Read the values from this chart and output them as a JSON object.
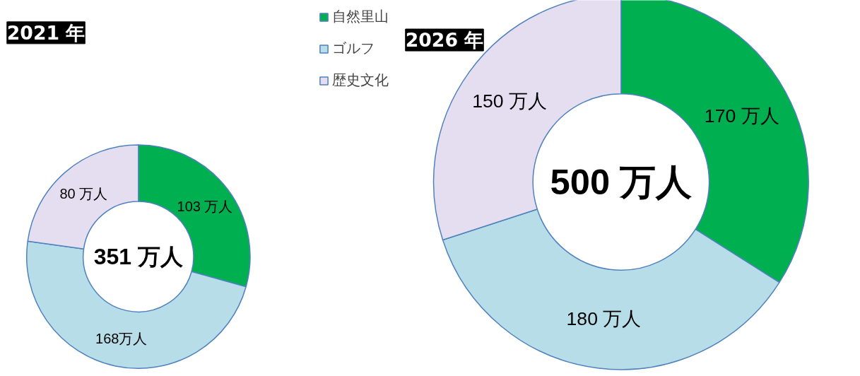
{
  "chart_data": [
    {
      "type": "donut",
      "title": "2021 年",
      "categories": [
        "自然里山",
        "ゴルフ",
        "歴史文化"
      ],
      "values": [
        103,
        168,
        80
      ],
      "colors": [
        "#00b050",
        "#b7dde8",
        "#e4def0"
      ],
      "value_labels": [
        "103 万人",
        "168万人",
        "80 万人"
      ],
      "annotations": [
        "351 万人"
      ],
      "legend": "top right"
    },
    {
      "type": "donut",
      "title": "2026 年",
      "categories": [
        null,
        null,
        null
      ],
      "values": [
        170,
        180,
        150
      ],
      "colors": [
        "#00b050",
        "#b7dde8",
        "#e4def0"
      ],
      "value_labels": [
        "170 万人",
        "180 万人",
        "150 万人"
      ],
      "annotations": [
        "500 万人"
      ]
    }
  ]
}
